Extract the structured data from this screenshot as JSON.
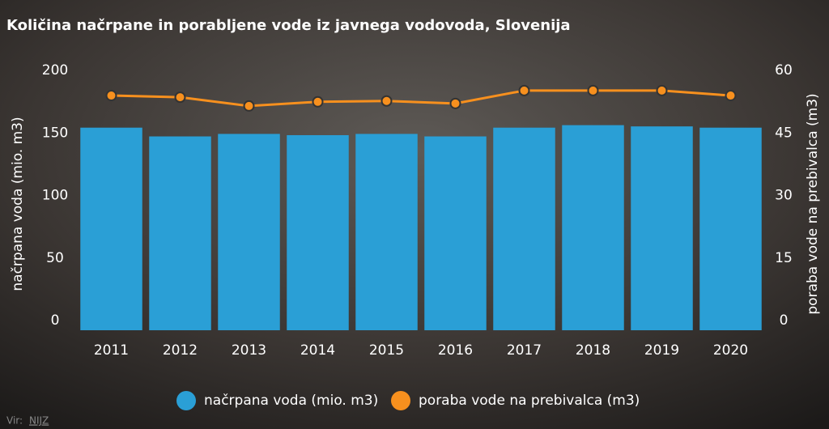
{
  "chart_data": {
    "type": "bar-line",
    "title": "Količina načrpane in porabljene vode iz javnega vodovoda, Slovenija",
    "categories": [
      "2011",
      "2012",
      "2013",
      "2014",
      "2015",
      "2016",
      "2017",
      "2018",
      "2019",
      "2020"
    ],
    "series": [
      {
        "name": "načrpana voda (mio. m3)",
        "color": "#2a9fd6",
        "type": "bar",
        "values": [
          162,
          155,
          157,
          156,
          157,
          155,
          162,
          164,
          163,
          162
        ]
      },
      {
        "name": "poraba vode na prebivalca (m3)",
        "color": "#f7901e",
        "type": "line",
        "axis": "y2",
        "values": [
          56.3,
          55.9,
          53.8,
          54.8,
          55.0,
          54.4,
          57.5,
          57.5,
          57.5,
          56.3
        ]
      }
    ],
    "ylabel": "načrpana voda (mio. m3)",
    "y2label": "poraba vode na prebivalca (m3)",
    "ylim": [
      0,
      200
    ],
    "yticks": [
      0,
      50,
      100,
      150,
      200
    ],
    "y2lim": [
      0,
      60
    ],
    "y2ticks": [
      0,
      15,
      30,
      45,
      60
    ],
    "source_label": "Vir:",
    "source": "NIJZ"
  }
}
